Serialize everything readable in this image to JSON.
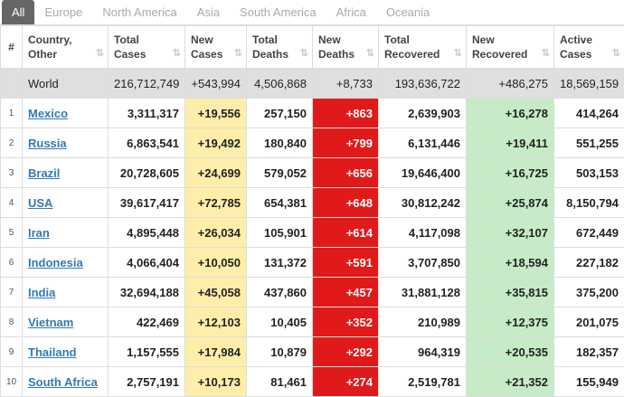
{
  "tabs": [
    "All",
    "Europe",
    "North America",
    "Asia",
    "South America",
    "Africa",
    "Oceania"
  ],
  "headers": [
    [
      "#"
    ],
    [
      "Country,",
      "Other"
    ],
    [
      "Total",
      "Cases"
    ],
    [
      "New",
      "Cases"
    ],
    [
      "Total",
      "Deaths"
    ],
    [
      "New",
      "Deaths"
    ],
    [
      "Total",
      "Recovered"
    ],
    [
      "New",
      "Recovered"
    ],
    [
      "Active",
      "Cases"
    ]
  ],
  "world": [
    "World",
    "216,712,749",
    "+543,994",
    "4,506,868",
    "+8,733",
    "193,636,722",
    "+486,275",
    "18,569,159"
  ],
  "rows": [
    [
      "1",
      "Mexico",
      "3,311,317",
      "+19,556",
      "257,150",
      "+863",
      "2,639,903",
      "+16,278",
      "414,264"
    ],
    [
      "2",
      "Russia",
      "6,863,541",
      "+19,492",
      "180,840",
      "+799",
      "6,131,446",
      "+19,411",
      "551,255"
    ],
    [
      "3",
      "Brazil",
      "20,728,605",
      "+24,699",
      "579,052",
      "+656",
      "19,646,400",
      "+16,725",
      "503,153"
    ],
    [
      "4",
      "USA",
      "39,617,417",
      "+72,785",
      "654,381",
      "+648",
      "30,812,242",
      "+25,874",
      "8,150,794"
    ],
    [
      "5",
      "Iran",
      "4,895,448",
      "+26,034",
      "105,901",
      "+614",
      "4,117,098",
      "+32,107",
      "672,449"
    ],
    [
      "6",
      "Indonesia",
      "4,066,404",
      "+10,050",
      "131,372",
      "+591",
      "3,707,850",
      "+18,594",
      "227,182"
    ],
    [
      "7",
      "India",
      "32,694,188",
      "+45,058",
      "437,860",
      "+457",
      "31,881,128",
      "+35,815",
      "375,200"
    ],
    [
      "8",
      "Vietnam",
      "422,469",
      "+12,103",
      "10,405",
      "+352",
      "210,989",
      "+12,375",
      "201,075"
    ],
    [
      "9",
      "Thailand",
      "1,157,555",
      "+17,984",
      "10,879",
      "+292",
      "964,319",
      "+20,535",
      "182,357"
    ],
    [
      "10",
      "South Africa",
      "2,757,191",
      "+10,173",
      "81,461",
      "+274",
      "2,519,781",
      "+21,352",
      "155,949"
    ]
  ]
}
